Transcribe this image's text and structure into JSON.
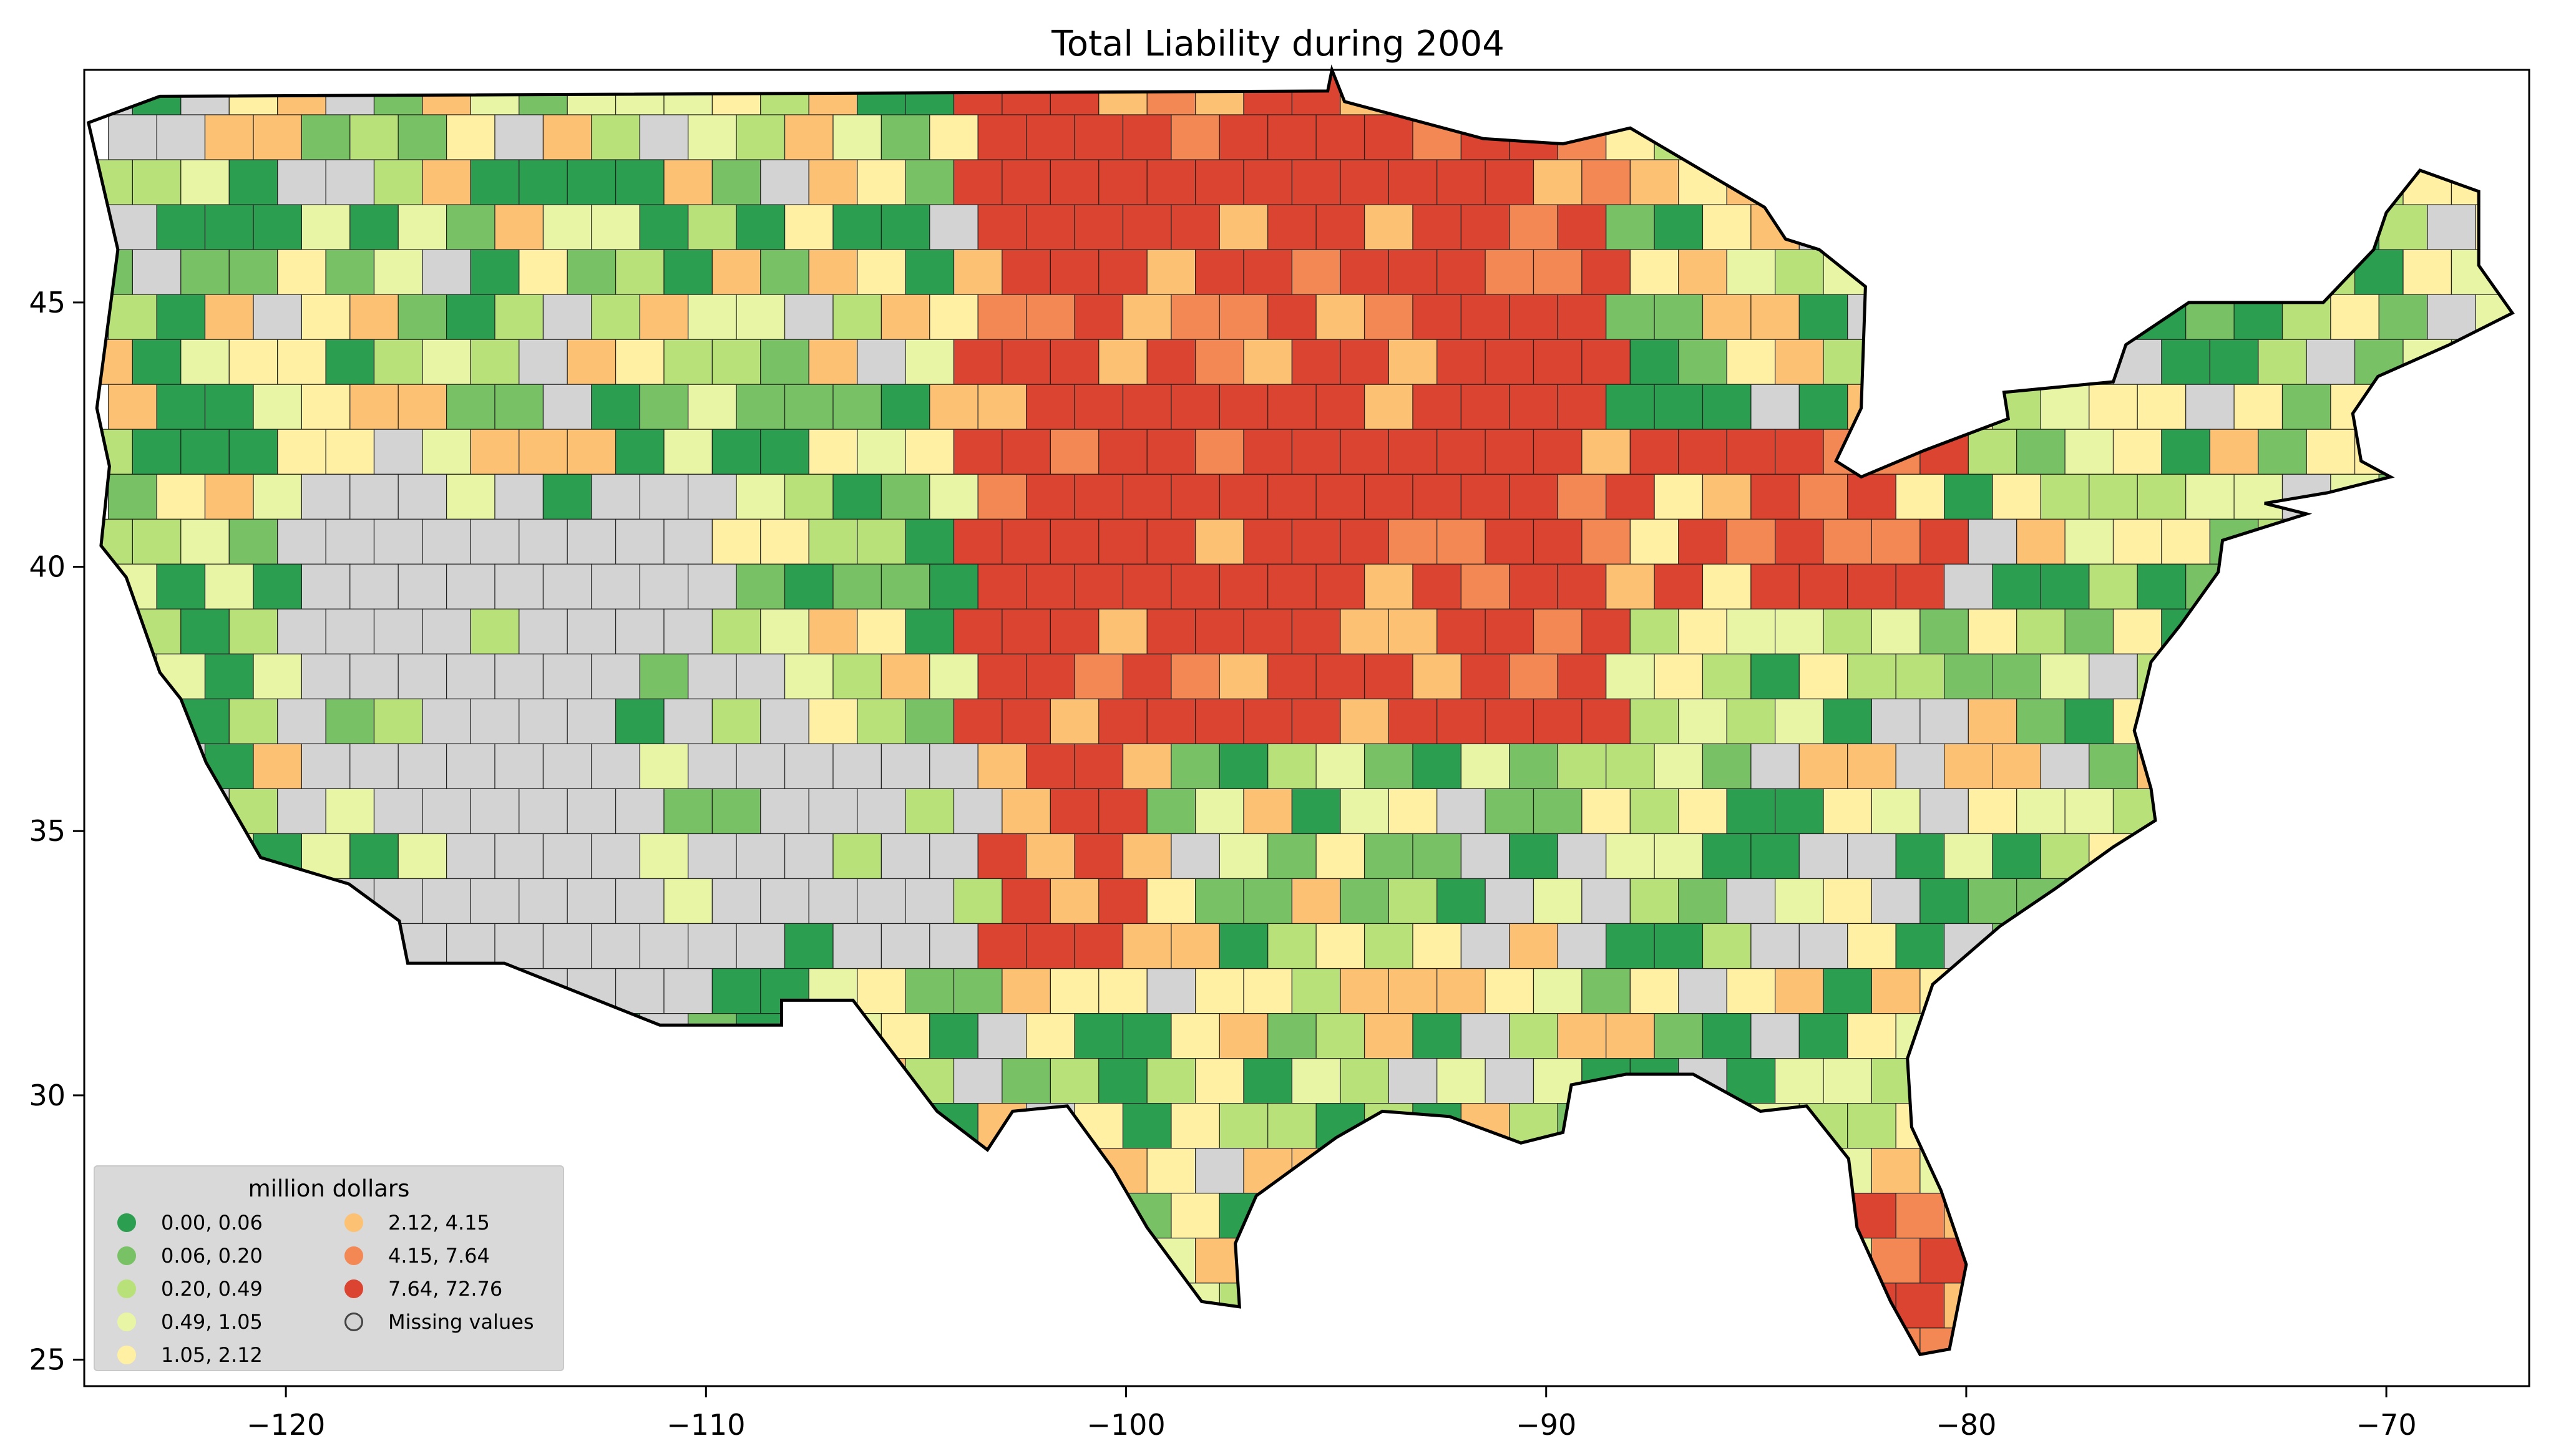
{
  "map": {
    "title": "Total Liability during 2004",
    "x_ticks": [
      "−120",
      "−110",
      "−100",
      "−90",
      "−80",
      "−70"
    ],
    "y_ticks": [
      "45",
      "40",
      "35",
      "30",
      "25"
    ],
    "x_range": [
      -124.8,
      -66.6
    ],
    "y_range": [
      24.5,
      49.4
    ],
    "missing_color": "#d3d3d3",
    "legend": {
      "title": "million dollars",
      "items": [
        {
          "label": "0.00,  0.06",
          "color": "#2b9e4f"
        },
        {
          "label": "0.06,  0.20",
          "color": "#78c265"
        },
        {
          "label": "0.20,  0.49",
          "color": "#b9e17a"
        },
        {
          "label": "0.49,  1.05",
          "color": "#e8f5a4"
        },
        {
          "label": "1.05,  2.12",
          "color": "#fff0a3"
        },
        {
          "label": "2.12,  4.15",
          "color": "#fdc174"
        },
        {
          "label": "4.15,  7.64",
          "color": "#f48855"
        },
        {
          "label": "7.64, 72.76",
          "color": "#dc4432"
        },
        {
          "label": "Missing values",
          "color": "#d3d3d3"
        }
      ]
    }
  }
}
